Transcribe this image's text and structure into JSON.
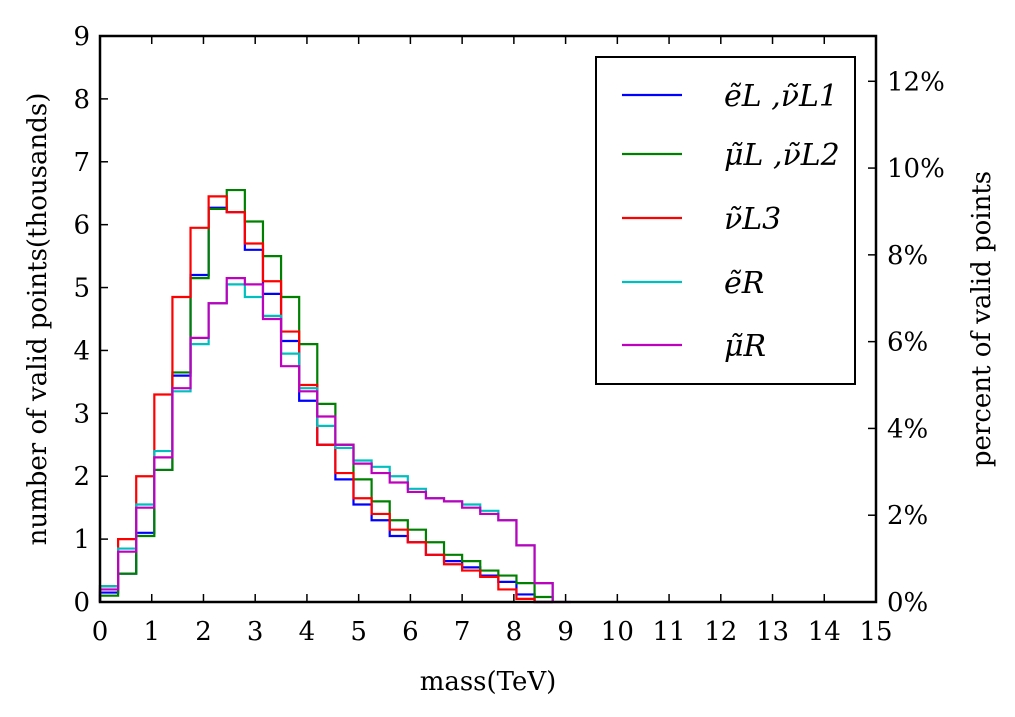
{
  "chart_data": {
    "type": "line",
    "title": "",
    "xlabel": "mass(TeV)",
    "ylabel": "number of valid points(thousands)",
    "y2label": "percent of valid points",
    "xlim": [
      0,
      15
    ],
    "ylim": [
      0,
      9
    ],
    "x_ticks": [
      "0",
      "1",
      "2",
      "3",
      "4",
      "5",
      "6",
      "7",
      "8",
      "9",
      "10",
      "11",
      "12",
      "13",
      "14",
      "15"
    ],
    "y_ticks": [
      "0",
      "1",
      "2",
      "3",
      "4",
      "5",
      "6",
      "7",
      "8",
      "9"
    ],
    "y2_ticks": [
      {
        "value": 0,
        "label": "0%"
      },
      {
        "value": 1.38,
        "label": "2%"
      },
      {
        "value": 2.76,
        "label": "4%"
      },
      {
        "value": 4.14,
        "label": "6%"
      },
      {
        "value": 5.52,
        "label": "8%"
      },
      {
        "value": 6.9,
        "label": "10%"
      },
      {
        "value": 8.28,
        "label": "12%"
      }
    ],
    "legend_position": "top-right",
    "bin_width": 0.35,
    "series": [
      {
        "name": "ẽL ,ν̃L1",
        "color": "#0000ff",
        "values": [
          0.15,
          0.45,
          1.1,
          2.1,
          3.6,
          5.2,
          6.27,
          6.2,
          5.6,
          4.9,
          4.15,
          3.2,
          2.5,
          1.95,
          1.55,
          1.3,
          1.05,
          0.95,
          0.75,
          0.65,
          0.55,
          0.42,
          0.32,
          0.12,
          0.0
        ]
      },
      {
        "name": "μ̃L ,ν̃L2",
        "color": "#008000",
        "values": [
          0.1,
          0.45,
          1.05,
          2.1,
          3.65,
          5.15,
          6.25,
          6.55,
          6.05,
          5.5,
          4.85,
          4.1,
          3.15,
          2.5,
          1.95,
          1.6,
          1.3,
          1.15,
          0.95,
          0.75,
          0.65,
          0.5,
          0.42,
          0.3,
          0.08
        ]
      },
      {
        "name": "ν̃L3",
        "color": "#ff0000",
        "values": [
          0.25,
          1.0,
          2.0,
          3.3,
          4.85,
          5.95,
          6.45,
          6.2,
          5.7,
          5.1,
          4.3,
          3.45,
          2.5,
          2.05,
          1.65,
          1.4,
          1.15,
          0.95,
          0.75,
          0.6,
          0.5,
          0.4,
          0.2,
          0.05,
          0.0
        ]
      },
      {
        "name": "ẽR",
        "color": "#00bfbf",
        "values": [
          0.25,
          0.85,
          1.55,
          2.4,
          3.35,
          4.1,
          4.75,
          5.05,
          4.85,
          4.55,
          3.95,
          3.4,
          2.8,
          2.45,
          2.25,
          2.15,
          2.0,
          1.8,
          1.65,
          1.6,
          1.55,
          1.45,
          1.3,
          0.9,
          0.3
        ]
      },
      {
        "name": "μ̃R",
        "color": "#bf00bf",
        "values": [
          0.2,
          0.8,
          1.5,
          2.3,
          3.4,
          4.2,
          4.75,
          5.15,
          5.05,
          4.5,
          3.75,
          3.35,
          2.95,
          2.5,
          2.2,
          2.05,
          1.9,
          1.75,
          1.65,
          1.6,
          1.5,
          1.4,
          1.3,
          0.9,
          0.3,
          0.0
        ]
      }
    ]
  }
}
